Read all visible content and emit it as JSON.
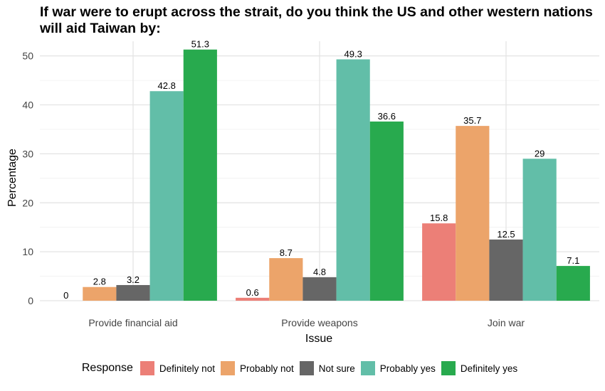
{
  "chart_data": {
    "type": "bar",
    "title": "If war were to erupt across the strait, do you think the US and other western nations will aid Taiwan by:",
    "xlabel": "Issue",
    "ylabel": "Percentage",
    "ylim": [
      0,
      53
    ],
    "yticks": [
      0,
      10,
      20,
      30,
      40,
      50
    ],
    "categories": [
      "Provide financial aid",
      "Provide weapons",
      "Join war"
    ],
    "legend_title": "Response",
    "legend_position": "bottom",
    "grid": true,
    "series": [
      {
        "name": "Definitely not",
        "color": "#EC7F77",
        "values": [
          0,
          0.6,
          15.8
        ]
      },
      {
        "name": "Probably not",
        "color": "#ECA46A",
        "values": [
          2.8,
          8.7,
          35.7
        ]
      },
      {
        "name": "Not sure",
        "color": "#666666",
        "values": [
          3.2,
          4.8,
          12.5
        ]
      },
      {
        "name": "Probably yes",
        "color": "#62BEA8",
        "values": [
          42.8,
          49.3,
          29
        ]
      },
      {
        "name": "Definitely yes",
        "color": "#28AA4E",
        "values": [
          51.3,
          36.6,
          7.1
        ]
      }
    ]
  }
}
